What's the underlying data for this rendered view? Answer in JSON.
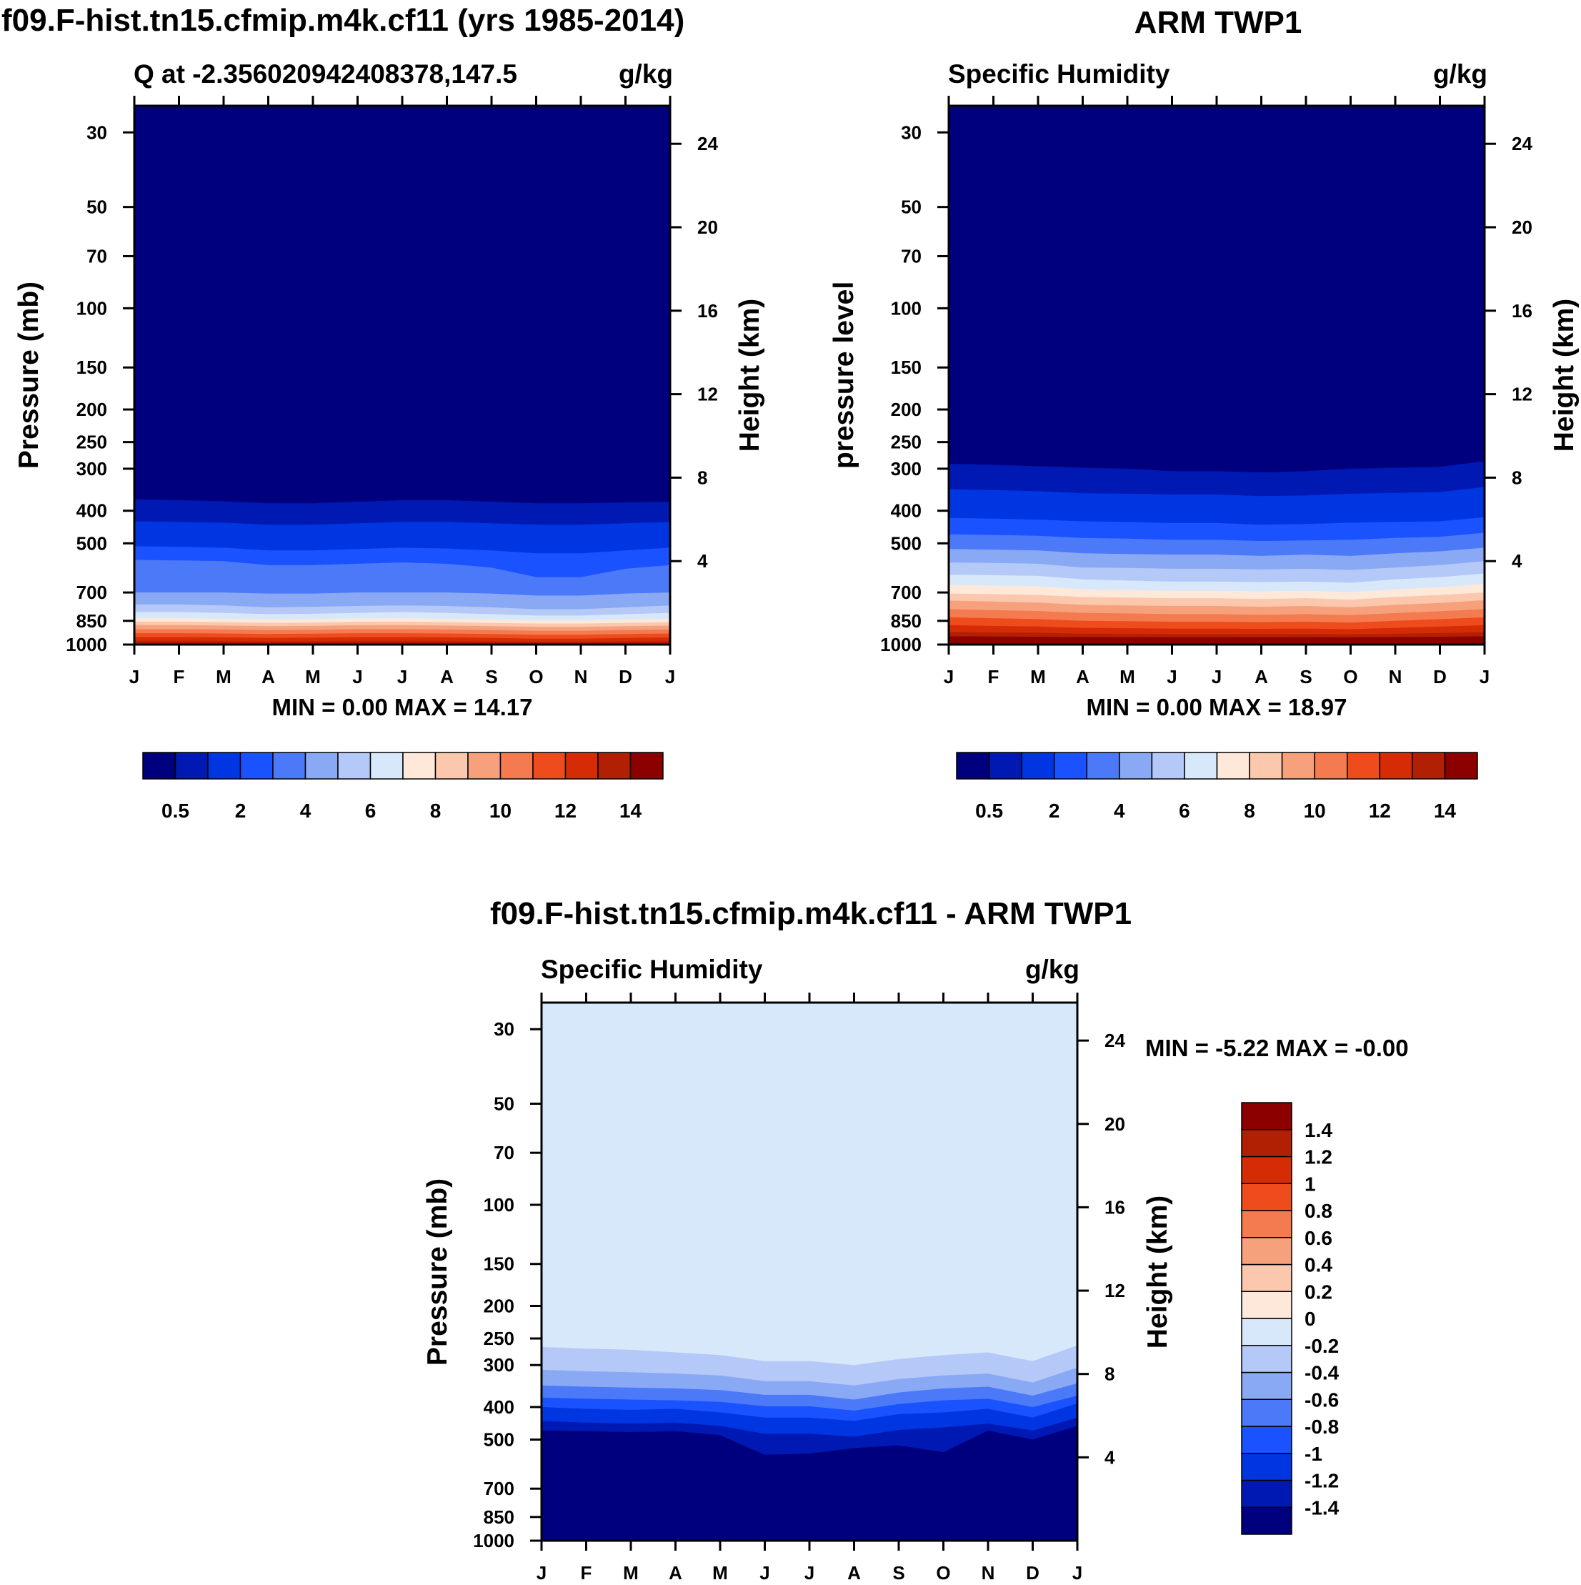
{
  "colors": {
    "scale": [
      "#00007f",
      "#0019b3",
      "#0036e2",
      "#1a52ff",
      "#4b79f7",
      "#8aa9f5",
      "#b5c9f8",
      "#d7e8fa",
      "#fde8d9",
      "#fbc7ad",
      "#f7a07c",
      "#f47a4f",
      "#ef4c1e",
      "#d62c06",
      "#b22004",
      "#8c0000"
    ],
    "diff_scale": [
      "#00007f",
      "#0019b3",
      "#0036e2",
      "#1a52ff",
      "#4b79f7",
      "#8aa9f5",
      "#b5c9f8",
      "#d7e8fa",
      "#fde8d9",
      "#fbc7ad",
      "#f7a07c",
      "#f47a4f",
      "#ef4c1e",
      "#d62c06",
      "#b22004",
      "#8c0000"
    ]
  },
  "chart_data": [
    {
      "id": "model",
      "type": "contour",
      "title": "f09.F-hist.tn15.cfmip.m4k.cf11 (yrs 1985-2014)",
      "subtitle_left": "Q at -2.356020942408378,147.5",
      "subtitle_right": "g/kg",
      "ylabel": "Pressure (mb)",
      "ylabel_right": "Height (km)",
      "xticks": [
        "J",
        "F",
        "M",
        "A",
        "M",
        "J",
        "J",
        "A",
        "S",
        "O",
        "N",
        "D",
        "J"
      ],
      "yticks": [
        30,
        50,
        70,
        100,
        150,
        200,
        250,
        300,
        400,
        500,
        700,
        850,
        1000
      ],
      "yticks_right": [
        24,
        20,
        16,
        12,
        8,
        4
      ],
      "ylim": [
        1000,
        25
      ],
      "minmax_text": "MIN =   0.00 MAX =  14.17",
      "min": 0.0,
      "max": 14.17,
      "levels": [
        0.5,
        1,
        2,
        3,
        4,
        5,
        6,
        7,
        8,
        9,
        10,
        11,
        12,
        13,
        14
      ],
      "colorbar_labels": [
        "0.5",
        "2",
        "4",
        "6",
        "8",
        "10",
        "12",
        "14"
      ],
      "bands": [
        {
          "color": 1,
          "p": [
            370,
            372,
            375,
            380,
            380,
            376,
            372,
            372,
            376,
            380,
            380,
            378,
            376
          ]
        },
        {
          "color": 2,
          "p": [
            430,
            432,
            434,
            440,
            440,
            436,
            432,
            432,
            436,
            440,
            440,
            436,
            432
          ]
        },
        {
          "color": 3,
          "p": [
            510,
            512,
            515,
            525,
            525,
            520,
            515,
            518,
            525,
            535,
            535,
            525,
            515
          ]
        },
        {
          "color": 4,
          "p": [
            560,
            562,
            565,
            580,
            580,
            575,
            570,
            575,
            590,
            630,
            630,
            595,
            580
          ]
        },
        {
          "color": 5,
          "p": [
            700,
            700,
            700,
            705,
            705,
            700,
            700,
            700,
            705,
            715,
            715,
            705,
            700
          ]
        },
        {
          "color": 6,
          "p": [
            760,
            760,
            765,
            775,
            772,
            768,
            765,
            768,
            775,
            785,
            785,
            775,
            765
          ]
        },
        {
          "color": 7,
          "p": [
            800,
            800,
            805,
            812,
            810,
            805,
            800,
            805,
            812,
            820,
            820,
            812,
            805
          ]
        },
        {
          "color": 8,
          "p": [
            835,
            835,
            838,
            842,
            840,
            836,
            835,
            838,
            842,
            848,
            848,
            842,
            838
          ]
        },
        {
          "color": 9,
          "p": [
            855,
            855,
            858,
            862,
            860,
            856,
            855,
            858,
            862,
            866,
            866,
            862,
            858
          ]
        },
        {
          "color": 10,
          "p": [
            875,
            875,
            878,
            882,
            880,
            876,
            875,
            878,
            882,
            886,
            886,
            882,
            878
          ]
        },
        {
          "color": 11,
          "p": [
            900,
            900,
            902,
            905,
            904,
            900,
            900,
            902,
            905,
            910,
            910,
            905,
            902
          ]
        },
        {
          "color": 12,
          "p": [
            925,
            925,
            927,
            930,
            928,
            925,
            925,
            927,
            930,
            935,
            935,
            930,
            927
          ]
        },
        {
          "color": 13,
          "p": [
            950,
            950,
            952,
            955,
            953,
            950,
            950,
            952,
            955,
            960,
            960,
            955,
            952
          ]
        },
        {
          "color": 14,
          "p": [
            975,
            975,
            976,
            978,
            977,
            975,
            975,
            976,
            978,
            980,
            980,
            978,
            976
          ]
        }
      ]
    },
    {
      "id": "obs",
      "type": "contour",
      "title": "ARM TWP1",
      "subtitle_left": "Specific Humidity",
      "subtitle_right": "g/kg",
      "ylabel": "pressure level",
      "ylabel_right": "Height (km)",
      "xticks": [
        "J",
        "F",
        "M",
        "A",
        "M",
        "J",
        "J",
        "A",
        "S",
        "O",
        "N",
        "D",
        "J"
      ],
      "yticks": [
        30,
        50,
        70,
        100,
        150,
        200,
        250,
        300,
        400,
        500,
        700,
        850,
        1000
      ],
      "yticks_right": [
        24,
        20,
        16,
        12,
        8,
        4
      ],
      "ylim": [
        1000,
        25
      ],
      "minmax_text": "MIN =   0.00 MAX =  18.97",
      "min": 0.0,
      "max": 18.97,
      "levels": [
        0.5,
        1,
        2,
        3,
        4,
        5,
        6,
        7,
        8,
        9,
        10,
        11,
        12,
        13,
        14
      ],
      "colorbar_labels": [
        "0.5",
        "2",
        "4",
        "6",
        "8",
        "10",
        "12",
        "14"
      ],
      "bands": [
        {
          "color": 1,
          "p": [
            290,
            292,
            295,
            298,
            300,
            305,
            305,
            308,
            305,
            300,
            298,
            296,
            285
          ]
        },
        {
          "color": 2,
          "p": [
            345,
            347,
            350,
            355,
            356,
            358,
            358,
            362,
            360,
            356,
            354,
            352,
            340
          ]
        },
        {
          "color": 3,
          "p": [
            420,
            422,
            425,
            430,
            432,
            435,
            435,
            440,
            438,
            434,
            432,
            430,
            418
          ]
        },
        {
          "color": 4,
          "p": [
            470,
            472,
            475,
            482,
            484,
            488,
            488,
            492,
            490,
            488,
            482,
            478,
            465
          ]
        },
        {
          "color": 5,
          "p": [
            520,
            522,
            525,
            535,
            538,
            540,
            540,
            545,
            540,
            545,
            535,
            528,
            515
          ]
        },
        {
          "color": 6,
          "p": [
            570,
            572,
            575,
            590,
            592,
            595,
            595,
            598,
            595,
            600,
            590,
            580,
            565
          ]
        },
        {
          "color": 7,
          "p": [
            620,
            622,
            625,
            640,
            645,
            650,
            650,
            652,
            650,
            655,
            640,
            630,
            615
          ]
        },
        {
          "color": 8,
          "p": [
            665,
            668,
            670,
            685,
            688,
            692,
            692,
            695,
            692,
            698,
            685,
            675,
            660
          ]
        },
        {
          "color": 9,
          "p": [
            705,
            708,
            712,
            722,
            725,
            728,
            728,
            732,
            728,
            735,
            722,
            712,
            700
          ]
        },
        {
          "color": 10,
          "p": [
            740,
            745,
            750,
            762,
            765,
            768,
            768,
            772,
            768,
            775,
            762,
            752,
            738
          ]
        },
        {
          "color": 11,
          "p": [
            785,
            790,
            795,
            805,
            808,
            812,
            812,
            816,
            812,
            818,
            806,
            796,
            784
          ]
        },
        {
          "color": 12,
          "p": [
            830,
            835,
            840,
            850,
            852,
            855,
            855,
            858,
            855,
            860,
            850,
            840,
            830
          ]
        },
        {
          "color": 13,
          "p": [
            875,
            880,
            884,
            892,
            894,
            896,
            896,
            898,
            896,
            900,
            892,
            884,
            876
          ]
        },
        {
          "color": 14,
          "p": [
            918,
            920,
            922,
            928,
            929,
            930,
            930,
            931,
            930,
            932,
            928,
            924,
            918
          ]
        },
        {
          "color": 15,
          "p": [
            945,
            946,
            948,
            950,
            950,
            951,
            951,
            952,
            951,
            952,
            950,
            948,
            945
          ]
        }
      ]
    },
    {
      "id": "diff",
      "type": "contour",
      "title": "f09.F-hist.tn15.cfmip.m4k.cf11 - ARM TWP1",
      "subtitle_left": "Specific Humidity",
      "subtitle_right": "g/kg",
      "ylabel": "Pressure (mb)",
      "ylabel_right": "Height (km)",
      "xticks": [
        "J",
        "F",
        "M",
        "A",
        "M",
        "J",
        "J",
        "A",
        "S",
        "O",
        "N",
        "D",
        "J"
      ],
      "yticks": [
        30,
        50,
        70,
        100,
        150,
        200,
        250,
        300,
        400,
        500,
        700,
        850,
        1000
      ],
      "yticks_right": [
        24,
        20,
        16,
        12,
        8,
        4
      ],
      "ylim": [
        1000,
        25
      ],
      "minmax_text": "MIN =  -5.22 MAX =  -0.00",
      "min": -5.22,
      "max": -0.0,
      "levels": [
        -1.4,
        -1.2,
        -1,
        -0.8,
        -0.6,
        -0.4,
        -0.2,
        0,
        0.2,
        0.4,
        0.6,
        0.8,
        1,
        1.2,
        1.4
      ],
      "colorbar_labels": [
        "-1.4",
        "-1.2",
        "-1",
        "-0.8",
        "-0.6",
        "-0.4",
        "-0.2",
        "0",
        "0.2",
        "0.4",
        "0.6",
        "0.8",
        "1",
        "1.2",
        "1.4"
      ],
      "base_color": 7,
      "bands": [
        {
          "color": 6,
          "p": [
            265,
            268,
            270,
            275,
            280,
            292,
            292,
            300,
            288,
            280,
            275,
            292,
            262
          ],
          "desc": true
        },
        {
          "color": 5,
          "p": [
            310,
            313,
            315,
            318,
            322,
            335,
            335,
            345,
            330,
            322,
            318,
            338,
            305
          ],
          "desc": true
        },
        {
          "color": 4,
          "p": [
            345,
            348,
            350,
            352,
            356,
            368,
            368,
            380,
            362,
            352,
            348,
            370,
            340
          ],
          "desc": true
        },
        {
          "color": 3,
          "p": [
            375,
            378,
            380,
            382,
            386,
            398,
            398,
            410,
            392,
            382,
            378,
            400,
            370
          ],
          "desc": true
        },
        {
          "color": 2,
          "p": [
            400,
            405,
            408,
            405,
            415,
            430,
            430,
            440,
            420,
            415,
            405,
            430,
            390
          ],
          "desc": true
        },
        {
          "color": 1,
          "p": [
            440,
            445,
            448,
            445,
            455,
            480,
            480,
            490,
            468,
            460,
            448,
            470,
            430
          ],
          "desc": true
        },
        {
          "color": 0,
          "p": [
            470,
            472,
            475,
            472,
            485,
            555,
            550,
            530,
            520,
            545,
            470,
            500,
            455
          ],
          "desc": true
        }
      ]
    }
  ]
}
